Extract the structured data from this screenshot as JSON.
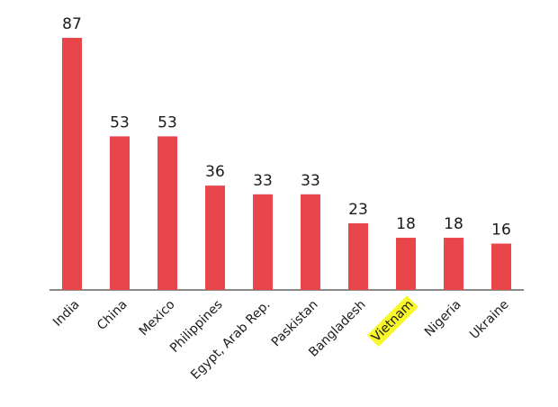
{
  "chart_data": {
    "type": "bar",
    "categories": [
      "India",
      "China",
      "Mexico",
      "Philippines",
      "Egypt, Arab Rep.",
      "Paskistan",
      "Bangladesh",
      "Vietnam",
      "Nigeria",
      "Ukraine"
    ],
    "values": [
      87,
      53,
      53,
      36,
      33,
      33,
      23,
      18,
      18,
      16
    ],
    "color": "#e8464a",
    "highlight": "Vietnam",
    "highlight_color": "#f7f72a"
  }
}
